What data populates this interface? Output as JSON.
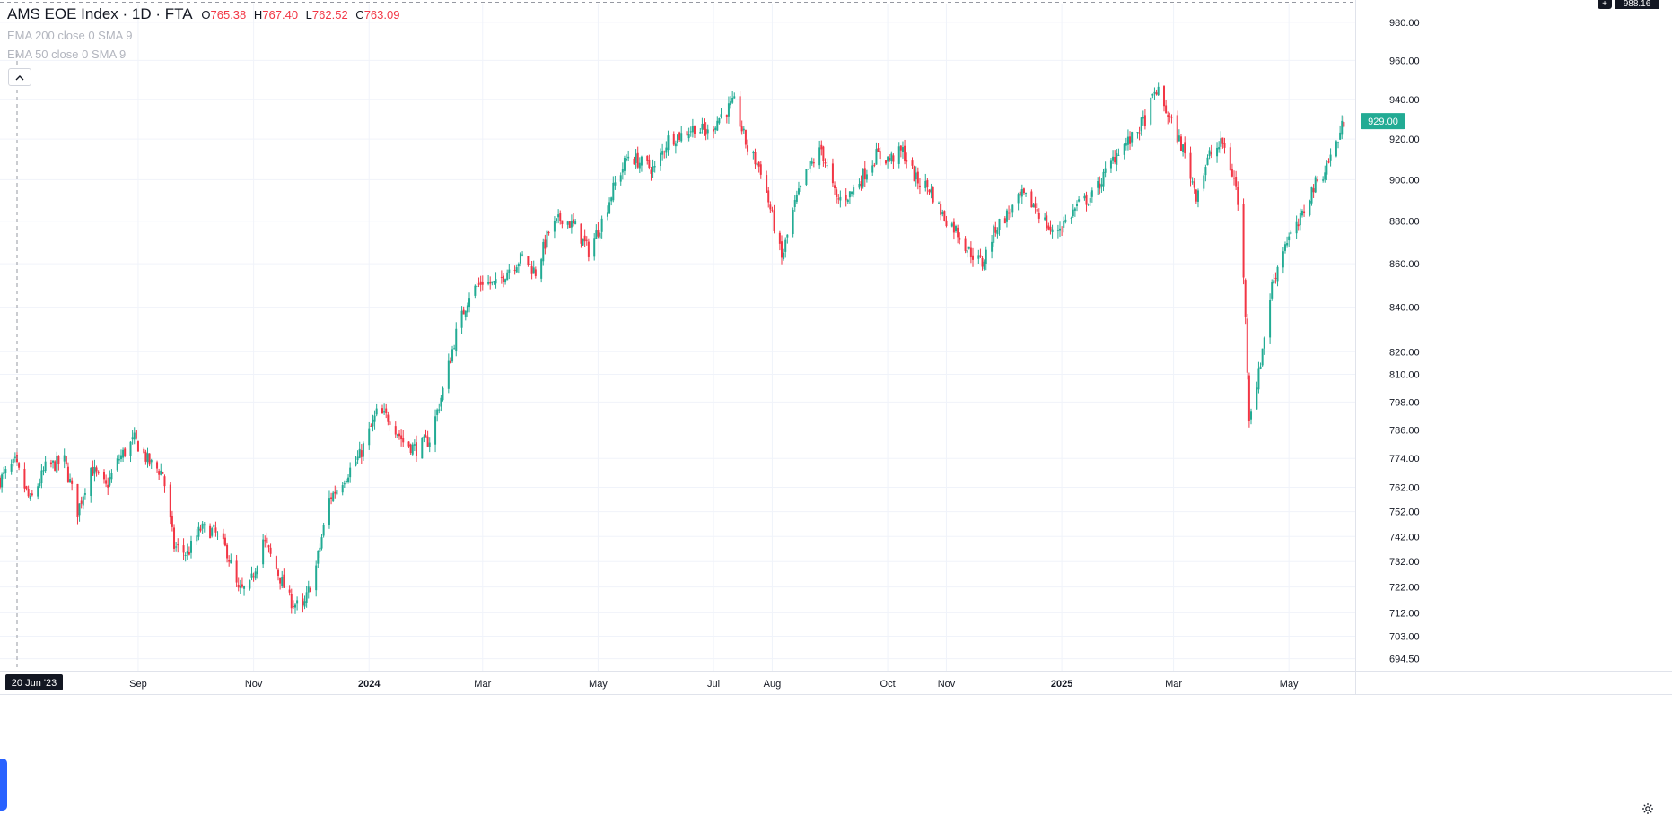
{
  "legend": {
    "symbol": "AMS EOE Index · 1D · FTA",
    "o_label": "O",
    "o_value": "765.38",
    "h_label": "H",
    "h_value": "767.40",
    "l_label": "L",
    "l_value": "762.52",
    "c_label": "C",
    "c_value": "763.09",
    "indicators": [
      "EMA 200 close 0 SMA 9",
      "EMA 50 close 0 SMA 9"
    ]
  },
  "ui": {
    "collapse_icon": "chevron-up-icon",
    "settings_icon": "gear-icon",
    "crosshair_price": "988.16",
    "crosshair_date": "20 Jun '23",
    "last_price_label": "929.00"
  },
  "colors": {
    "up": "#22ab94",
    "down": "#f23645",
    "last_price_badge": "#22ab94",
    "grid": "#f0f3fa",
    "axis_text": "#131722"
  },
  "chart_data": {
    "type": "candlestick",
    "title": "AMS EOE Index · 1D · FTA",
    "x_ticks": [
      {
        "label": "Sep",
        "date": "2023-09-01"
      },
      {
        "label": "Nov",
        "date": "2023-11-01"
      },
      {
        "label": "2024",
        "date": "2024-01-01"
      },
      {
        "label": "Mar",
        "date": "2024-03-01"
      },
      {
        "label": "May",
        "date": "2024-05-01"
      },
      {
        "label": "Jul",
        "date": "2024-07-01"
      },
      {
        "label": "Aug",
        "date": "2024-08-01"
      },
      {
        "label": "Oct",
        "date": "2024-10-01"
      },
      {
        "label": "Nov",
        "date": "2024-11-01"
      },
      {
        "label": "2025",
        "date": "2025-01-01"
      },
      {
        "label": "Mar",
        "date": "2025-03-01"
      },
      {
        "label": "May",
        "date": "2025-05-01"
      }
    ],
    "y_ticks": [
      694.5,
      703.0,
      712.0,
      722.0,
      732.0,
      742.0,
      752.0,
      762.0,
      774.0,
      786.0,
      798.0,
      810.0,
      820.0,
      840.0,
      860.0,
      880.0,
      900.0,
      920.0,
      940.0,
      960.0,
      980.0
    ],
    "y_tick_labels": [
      "694.50",
      "703.00",
      "712.00",
      "722.00",
      "732.00",
      "742.00",
      "752.00",
      "762.00",
      "774.00",
      "786.00",
      "798.00",
      "810.00",
      "820.00",
      "840.00",
      "860.00",
      "880.00",
      "900.00",
      "920.00",
      "940.00",
      "960.00",
      "980.00"
    ],
    "y_scale": "log",
    "ylim": [
      690,
      990
    ],
    "x_range": [
      "2023-06-20",
      "2025-06-05"
    ],
    "grid": true,
    "last_price": 929.0,
    "close_path": [
      {
        "date": "2023-06-20",
        "close": 765
      },
      {
        "date": "2023-06-28",
        "close": 772
      },
      {
        "date": "2023-07-06",
        "close": 756
      },
      {
        "date": "2023-07-14",
        "close": 770
      },
      {
        "date": "2023-07-24",
        "close": 773
      },
      {
        "date": "2023-07-31",
        "close": 752
      },
      {
        "date": "2023-08-07",
        "close": 770
      },
      {
        "date": "2023-08-15",
        "close": 762
      },
      {
        "date": "2023-08-22",
        "close": 774
      },
      {
        "date": "2023-08-30",
        "close": 782
      },
      {
        "date": "2023-09-07",
        "close": 772
      },
      {
        "date": "2023-09-14",
        "close": 768
      },
      {
        "date": "2023-09-20",
        "close": 738
      },
      {
        "date": "2023-09-27",
        "close": 735
      },
      {
        "date": "2023-10-04",
        "close": 745
      },
      {
        "date": "2023-10-11",
        "close": 744
      },
      {
        "date": "2023-10-18",
        "close": 736
      },
      {
        "date": "2023-10-24",
        "close": 720
      },
      {
        "date": "2023-10-30",
        "close": 722
      },
      {
        "date": "2023-11-06",
        "close": 741
      },
      {
        "date": "2023-11-13",
        "close": 729
      },
      {
        "date": "2023-11-20",
        "close": 717
      },
      {
        "date": "2023-11-27",
        "close": 713
      },
      {
        "date": "2023-12-04",
        "close": 730
      },
      {
        "date": "2023-12-11",
        "close": 757
      },
      {
        "date": "2023-12-18",
        "close": 765
      },
      {
        "date": "2023-12-27",
        "close": 775
      },
      {
        "date": "2024-01-05",
        "close": 793
      },
      {
        "date": "2024-01-12",
        "close": 791
      },
      {
        "date": "2024-01-19",
        "close": 781
      },
      {
        "date": "2024-01-26",
        "close": 778
      },
      {
        "date": "2024-02-02",
        "close": 782
      },
      {
        "date": "2024-02-09",
        "close": 803
      },
      {
        "date": "2024-02-16",
        "close": 828
      },
      {
        "date": "2024-02-23",
        "close": 846
      },
      {
        "date": "2024-03-01",
        "close": 852
      },
      {
        "date": "2024-03-08",
        "close": 850
      },
      {
        "date": "2024-03-15",
        "close": 858
      },
      {
        "date": "2024-03-22",
        "close": 863
      },
      {
        "date": "2024-03-29",
        "close": 856
      },
      {
        "date": "2024-04-05",
        "close": 875
      },
      {
        "date": "2024-04-12",
        "close": 882
      },
      {
        "date": "2024-04-19",
        "close": 877
      },
      {
        "date": "2024-04-26",
        "close": 866
      },
      {
        "date": "2024-05-03",
        "close": 880
      },
      {
        "date": "2024-05-10",
        "close": 898
      },
      {
        "date": "2024-05-17",
        "close": 912
      },
      {
        "date": "2024-05-24",
        "close": 908
      },
      {
        "date": "2024-05-31",
        "close": 905
      },
      {
        "date": "2024-06-07",
        "close": 920
      },
      {
        "date": "2024-06-14",
        "close": 922
      },
      {
        "date": "2024-06-21",
        "close": 926
      },
      {
        "date": "2024-06-28",
        "close": 923
      },
      {
        "date": "2024-07-05",
        "close": 932
      },
      {
        "date": "2024-07-12",
        "close": 938
      },
      {
        "date": "2024-07-19",
        "close": 915
      },
      {
        "date": "2024-07-26",
        "close": 905
      },
      {
        "date": "2024-08-02",
        "close": 878
      },
      {
        "date": "2024-08-06",
        "close": 862
      },
      {
        "date": "2024-08-13",
        "close": 888
      },
      {
        "date": "2024-08-20",
        "close": 905
      },
      {
        "date": "2024-08-27",
        "close": 915
      },
      {
        "date": "2024-09-04",
        "close": 890
      },
      {
        "date": "2024-09-11",
        "close": 893
      },
      {
        "date": "2024-09-18",
        "close": 902
      },
      {
        "date": "2024-09-25",
        "close": 912
      },
      {
        "date": "2024-10-02",
        "close": 910
      },
      {
        "date": "2024-10-09",
        "close": 914
      },
      {
        "date": "2024-10-16",
        "close": 900
      },
      {
        "date": "2024-10-23",
        "close": 896
      },
      {
        "date": "2024-10-30",
        "close": 883
      },
      {
        "date": "2024-11-06",
        "close": 876
      },
      {
        "date": "2024-11-13",
        "close": 866
      },
      {
        "date": "2024-11-20",
        "close": 860
      },
      {
        "date": "2024-11-27",
        "close": 877
      },
      {
        "date": "2024-12-04",
        "close": 884
      },
      {
        "date": "2024-12-11",
        "close": 892
      },
      {
        "date": "2024-12-18",
        "close": 887
      },
      {
        "date": "2024-12-27",
        "close": 874
      },
      {
        "date": "2025-01-03",
        "close": 880
      },
      {
        "date": "2025-01-10",
        "close": 888
      },
      {
        "date": "2025-01-17",
        "close": 892
      },
      {
        "date": "2025-01-24",
        "close": 903
      },
      {
        "date": "2025-01-31",
        "close": 915
      },
      {
        "date": "2025-02-07",
        "close": 920
      },
      {
        "date": "2025-02-14",
        "close": 930
      },
      {
        "date": "2025-02-20",
        "close": 945
      },
      {
        "date": "2025-02-27",
        "close": 930
      },
      {
        "date": "2025-03-06",
        "close": 915
      },
      {
        "date": "2025-03-13",
        "close": 893
      },
      {
        "date": "2025-03-20",
        "close": 912
      },
      {
        "date": "2025-03-27",
        "close": 918
      },
      {
        "date": "2025-04-03",
        "close": 897
      },
      {
        "date": "2025-04-07",
        "close": 855
      },
      {
        "date": "2025-04-10",
        "close": 792
      },
      {
        "date": "2025-04-15",
        "close": 810
      },
      {
        "date": "2025-04-22",
        "close": 850
      },
      {
        "date": "2025-04-29",
        "close": 870
      },
      {
        "date": "2025-05-06",
        "close": 878
      },
      {
        "date": "2025-05-13",
        "close": 895
      },
      {
        "date": "2025-05-20",
        "close": 905
      },
      {
        "date": "2025-05-27",
        "close": 920
      },
      {
        "date": "2025-05-30",
        "close": 929
      }
    ]
  }
}
